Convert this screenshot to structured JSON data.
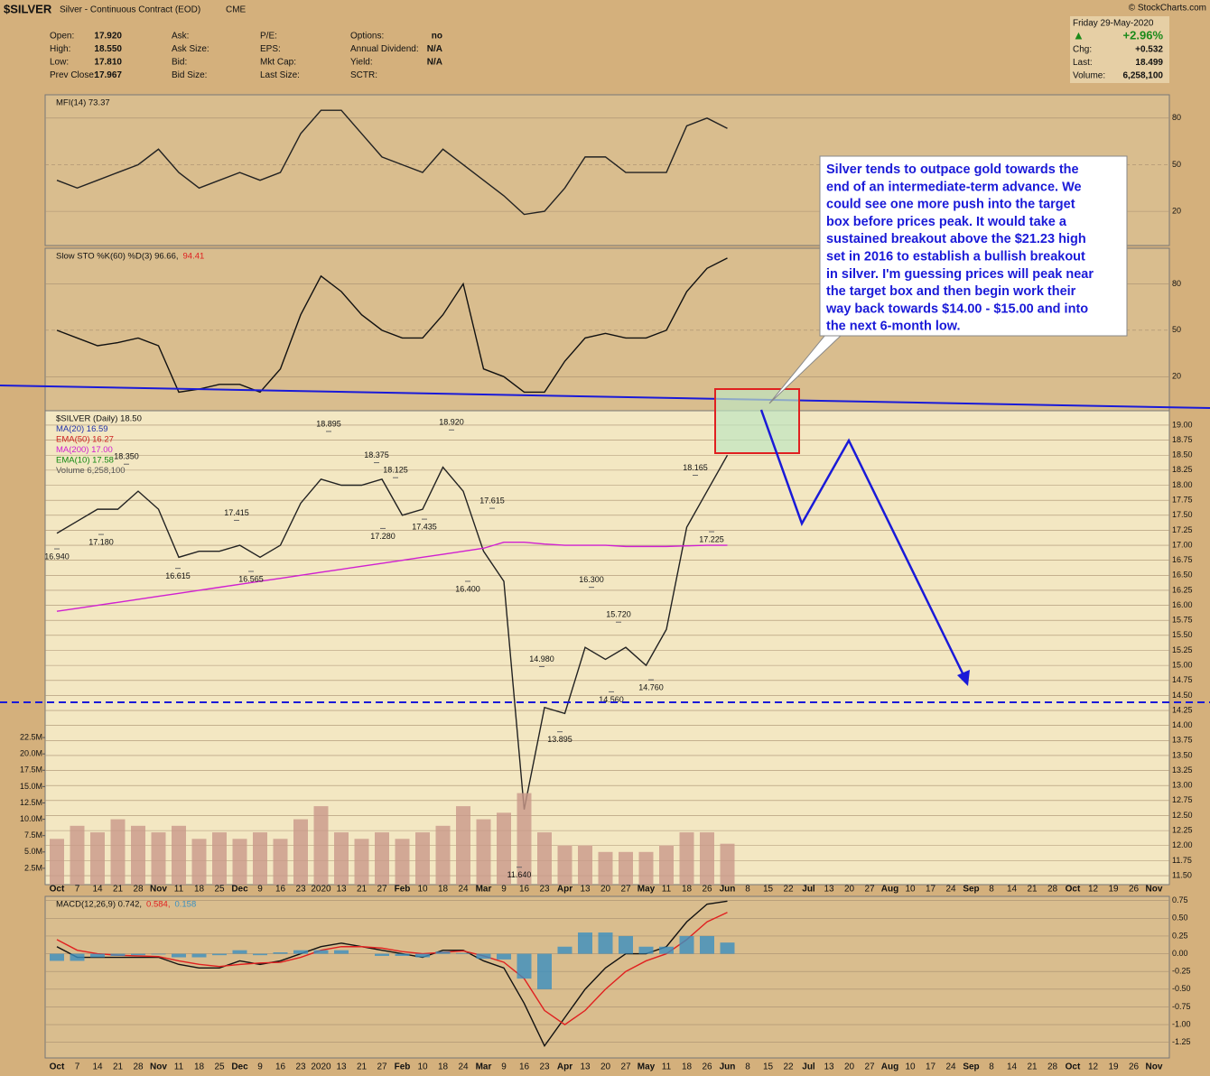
{
  "header": {
    "symbol": "$SILVER",
    "name": "Silver - Continuous Contract (EOD)",
    "exchange": "CME",
    "source": "© StockCharts.com",
    "quote": [
      [
        [
          "Open:",
          "17.920"
        ],
        [
          "High:",
          "18.550"
        ],
        [
          "Low:",
          "17.810"
        ],
        [
          "Prev Close:",
          "17.967"
        ]
      ],
      [
        [
          "Ask:"
        ],
        [
          "Ask Size:"
        ],
        [
          "Bid:"
        ],
        [
          "Bid Size:"
        ]
      ],
      [
        [
          "P/E:"
        ],
        [
          "EPS:"
        ],
        [
          "Mkt Cap:"
        ],
        [
          "Last Size:"
        ]
      ],
      [
        [
          "Options:",
          "no"
        ],
        [
          "Annual Dividend:",
          "N/A"
        ],
        [
          "Yield:",
          "N/A"
        ],
        [
          "SCTR:"
        ]
      ]
    ],
    "date": "Friday  29-May-2020",
    "arrow": "▲",
    "change_pct": "+2.96%",
    "summary": [
      [
        "Chg:",
        "+0.532"
      ],
      [
        "Last:",
        "18.499"
      ],
      [
        "Volume:",
        "6,258,100"
      ]
    ]
  },
  "annotation": [
    "Silver tends to outpace gold towards the",
    "end of an intermediate-term advance. We",
    "could see one more push into the target",
    "box before prices peak. It would take a",
    "sustained breakout above the $21.23 high",
    "set in 2016 to establish a bullish breakout",
    "in silver. I'm guessing prices will peak near",
    "the target box and then begin work their",
    "way back towards $14.00 - $15.00 and into",
    "the next 6-month low."
  ],
  "chart_data": [
    {
      "type": "line",
      "legend": [
        "MFI(14) 73.37"
      ],
      "ylim": [
        -2,
        95
      ],
      "yticks": [
        80,
        50,
        20
      ],
      "series": [
        {
          "name": "MFI(14)",
          "color": "#222",
          "values": [
            40,
            35,
            40,
            45,
            50,
            60,
            45,
            35,
            40,
            45,
            40,
            45,
            70,
            85,
            85,
            70,
            55,
            50,
            45,
            60,
            50,
            40,
            30,
            18,
            20,
            35,
            55,
            55,
            45,
            45,
            45,
            75,
            80,
            73.37
          ]
        }
      ]
    },
    {
      "type": "line",
      "legend": [
        "Slow STO %K(60) %D(3) 96.66,",
        "94.41"
      ],
      "ylim": [
        -2,
        103
      ],
      "yticks": [
        80,
        50,
        20
      ],
      "series": [
        {
          "name": "%K",
          "color": "#111",
          "values": [
            50,
            45,
            40,
            42,
            45,
            40,
            10,
            12,
            15,
            15,
            10,
            25,
            60,
            85,
            75,
            60,
            50,
            45,
            45,
            60,
            80,
            25,
            20,
            10,
            10,
            30,
            45,
            48,
            45,
            45,
            50,
            75,
            90,
            96.66
          ]
        }
      ]
    },
    {
      "type": "line",
      "legend": [
        "$SILVER (Daily) 18.50",
        "MA(20) 16.59",
        "EMA(50) 16.27",
        "MA(200) 17.00",
        "EMA(10) 17.58",
        "Volume 6,258,100"
      ],
      "legend_colors": [
        "#111",
        "#2233aa",
        "#cc2222",
        "#d020d0",
        "#118811",
        "#555"
      ],
      "categories": [
        "Oct",
        "7",
        "14",
        "21",
        "28",
        "Nov",
        "11",
        "18",
        "25",
        "Dec",
        "9",
        "16",
        "23",
        "2020",
        "13",
        "21",
        "27",
        "Feb",
        "10",
        "18",
        "24",
        "Mar",
        "9",
        "16",
        "23",
        "Apr",
        "13",
        "20",
        "27",
        "May",
        "11",
        "18",
        "26",
        "Jun"
      ],
      "forecast_categories": [
        "8",
        "15",
        "22",
        "Jul",
        "13",
        "20",
        "27",
        "Aug",
        "10",
        "17",
        "24",
        "Sep",
        "8",
        "14",
        "21",
        "28",
        "Oct",
        "12",
        "19",
        "26",
        "Nov"
      ],
      "ylim": [
        11.35,
        19.24
      ],
      "yticks": [
        {
          "value": 19,
          "label": "19.00"
        },
        18.75,
        {
          "value": 18.5,
          "label": "18.50"
        },
        18.25,
        {
          "value": 18,
          "label": "18.00"
        },
        17.75,
        {
          "value": 17.5,
          "label": "17.50"
        },
        17.25,
        {
          "value": 17,
          "label": "17.00"
        },
        16.75,
        {
          "value": 16.5,
          "label": "16.50"
        },
        16.25,
        {
          "value": 16,
          "label": "16.00"
        },
        15.75,
        {
          "value": 15.5,
          "label": "15.50"
        },
        15.25,
        {
          "value": 15,
          "label": "15.00"
        },
        14.75,
        {
          "value": 14.5,
          "label": "14.50"
        },
        14.25,
        {
          "value": 14,
          "label": "14.00"
        },
        13.75,
        {
          "value": 13.5,
          "label": "13.50"
        },
        13.25,
        {
          "value": 13,
          "label": "13.00"
        },
        12.75,
        {
          "value": 12.5,
          "label": "12.50"
        },
        12.25,
        {
          "value": 12,
          "label": "12.00"
        },
        11.75,
        {
          "value": 11.5,
          "label": "11.50"
        }
      ],
      "y2lim": [
        0,
        72500000
      ],
      "y2ticks": [
        {
          "value": 2500000,
          "label": "2.5M"
        },
        {
          "value": 5000000,
          "label": "5.0M"
        },
        {
          "value": 7500000,
          "label": "7.5M"
        },
        {
          "value": 10000000,
          "label": "10.0M"
        },
        {
          "value": 12500000,
          "label": "12.5M"
        },
        {
          "value": 15000000,
          "label": "15.0M"
        },
        {
          "value": 17500000,
          "label": "17.5M"
        },
        {
          "value": 20000000,
          "label": "20.0M"
        },
        {
          "value": 22500000,
          "label": "22.5M"
        }
      ],
      "point_labels": [
        {
          "value": 16.94,
          "label": "16.940"
        },
        {
          "value": 17.18,
          "label": "17.180"
        },
        {
          "value": 18.35,
          "label": "18.350"
        },
        {
          "value": 16.615,
          "label": "16.615"
        },
        {
          "value": 16.565,
          "label": "16.565"
        },
        {
          "value": 17.415,
          "label": "17.415"
        },
        {
          "value": 18.895,
          "label": "18.895"
        },
        {
          "value": 18.375,
          "label": "18.375"
        },
        {
          "value": 18.125,
          "label": "18.125"
        },
        {
          "value": 17.28,
          "label": "17.280"
        },
        {
          "value": 17.435,
          "label": "17.435"
        },
        {
          "value": 18.92,
          "label": "18.920"
        },
        {
          "value": 17.615,
          "label": "17.615"
        },
        {
          "value": 16.4,
          "label": "16.400"
        },
        {
          "value": 14.98,
          "label": "14.980"
        },
        {
          "value": 16.3,
          "label": "16.300"
        },
        {
          "value": 15.72,
          "label": "15.720"
        },
        {
          "value": 14.56,
          "label": "14.560"
        },
        {
          "value": 14.76,
          "label": "14.760"
        },
        {
          "value": 13.895,
          "label": "13.895"
        },
        {
          "value": 11.64,
          "label": "11.640"
        },
        {
          "value": 18.165,
          "label": "18.165"
        },
        {
          "value": 17.225,
          "label": "17.225"
        }
      ],
      "series": [
        {
          "name": "$SILVER",
          "color": "#222",
          "values": [
            17.2,
            17.4,
            17.6,
            17.6,
            17.9,
            17.6,
            16.8,
            16.9,
            16.9,
            17.0,
            16.8,
            17.0,
            17.7,
            18.1,
            18.0,
            18.0,
            18.1,
            17.5,
            17.6,
            18.3,
            17.9,
            16.9,
            16.4,
            12.6,
            14.3,
            14.2,
            15.3,
            15.1,
            15.3,
            15.0,
            15.6,
            17.3,
            17.9,
            18.499
          ]
        },
        {
          "name": "MA(200)",
          "color": "#d020d0",
          "values": [
            15.9,
            15.95,
            16.0,
            16.05,
            16.1,
            16.15,
            16.2,
            16.25,
            16.3,
            16.35,
            16.4,
            16.45,
            16.5,
            16.55,
            16.6,
            16.65,
            16.7,
            16.75,
            16.8,
            16.85,
            16.9,
            16.95,
            17.05,
            17.05,
            17.02,
            17.0,
            17.0,
            17.0,
            16.98,
            16.98,
            16.98,
            16.99,
            17.0,
            17.0
          ]
        },
        {
          "name": "Volume",
          "type": "bar",
          "axis": "y2",
          "color": "#c9998a",
          "values": [
            7000000,
            9000000,
            8000000,
            10000000,
            9000000,
            8000000,
            9000000,
            7000000,
            8000000,
            7000000,
            8000000,
            7000000,
            10000000,
            12000000,
            8000000,
            7000000,
            8000000,
            7000000,
            8000000,
            9000000,
            12000000,
            10000000,
            11000000,
            14000000,
            8000000,
            6000000,
            6000000,
            5000000,
            5000000,
            5000000,
            6000000,
            8000000,
            8000000,
            6258100
          ]
        }
      ]
    },
    {
      "type": "line",
      "legend": [
        "MACD(12,26,9) 0.742,",
        "0.584,",
        "0.158"
      ],
      "ylim": [
        -1.47,
        0.81
      ],
      "yticks": [
        0.75,
        {
          "value": 0.5,
          "label": "0.50"
        },
        0.25,
        {
          "value": 0,
          "label": "0.00"
        },
        -0.25,
        {
          "value": -0.5,
          "label": "-0.50"
        },
        -0.75,
        {
          "value": -1,
          "label": "-1.00"
        },
        -1.25
      ],
      "series": [
        {
          "name": "MACD",
          "color": "#111",
          "values": [
            0.1,
            -0.05,
            -0.05,
            -0.05,
            -0.05,
            -0.05,
            -0.15,
            -0.2,
            -0.2,
            -0.1,
            -0.15,
            -0.1,
            0,
            0.1,
            0.15,
            0.1,
            0.05,
            0,
            -0.05,
            0.05,
            0.05,
            -0.1,
            -0.2,
            -0.7,
            -1.3,
            -0.9,
            -0.5,
            -0.2,
            0,
            0,
            0.1,
            0.45,
            0.7,
            0.742
          ]
        },
        {
          "name": "Signal",
          "color": "#e02020",
          "values": [
            0.2,
            0.05,
            0,
            -0.02,
            -0.03,
            -0.04,
            -0.1,
            -0.15,
            -0.18,
            -0.15,
            -0.13,
            -0.12,
            -0.05,
            0.05,
            0.1,
            0.1,
            0.08,
            0.03,
            0,
            0.02,
            0.04,
            -0.03,
            -0.12,
            -0.35,
            -0.8,
            -1.0,
            -0.8,
            -0.5,
            -0.25,
            -0.1,
            0,
            0.2,
            0.45,
            0.584
          ]
        },
        {
          "name": "Histogram",
          "type": "bar",
          "color": "#3a8fc0",
          "values": [
            -0.1,
            -0.1,
            -0.05,
            -0.03,
            -0.02,
            -0.01,
            -0.05,
            -0.05,
            -0.02,
            0.05,
            -0.02,
            0.02,
            0.05,
            0.05,
            0.05,
            0,
            -0.03,
            -0.03,
            -0.05,
            0.03,
            0.01,
            -0.07,
            -0.08,
            -0.35,
            -0.5,
            0.1,
            0.3,
            0.3,
            0.25,
            0.1,
            0.1,
            0.25,
            0.25,
            0.158
          ]
        }
      ]
    }
  ]
}
